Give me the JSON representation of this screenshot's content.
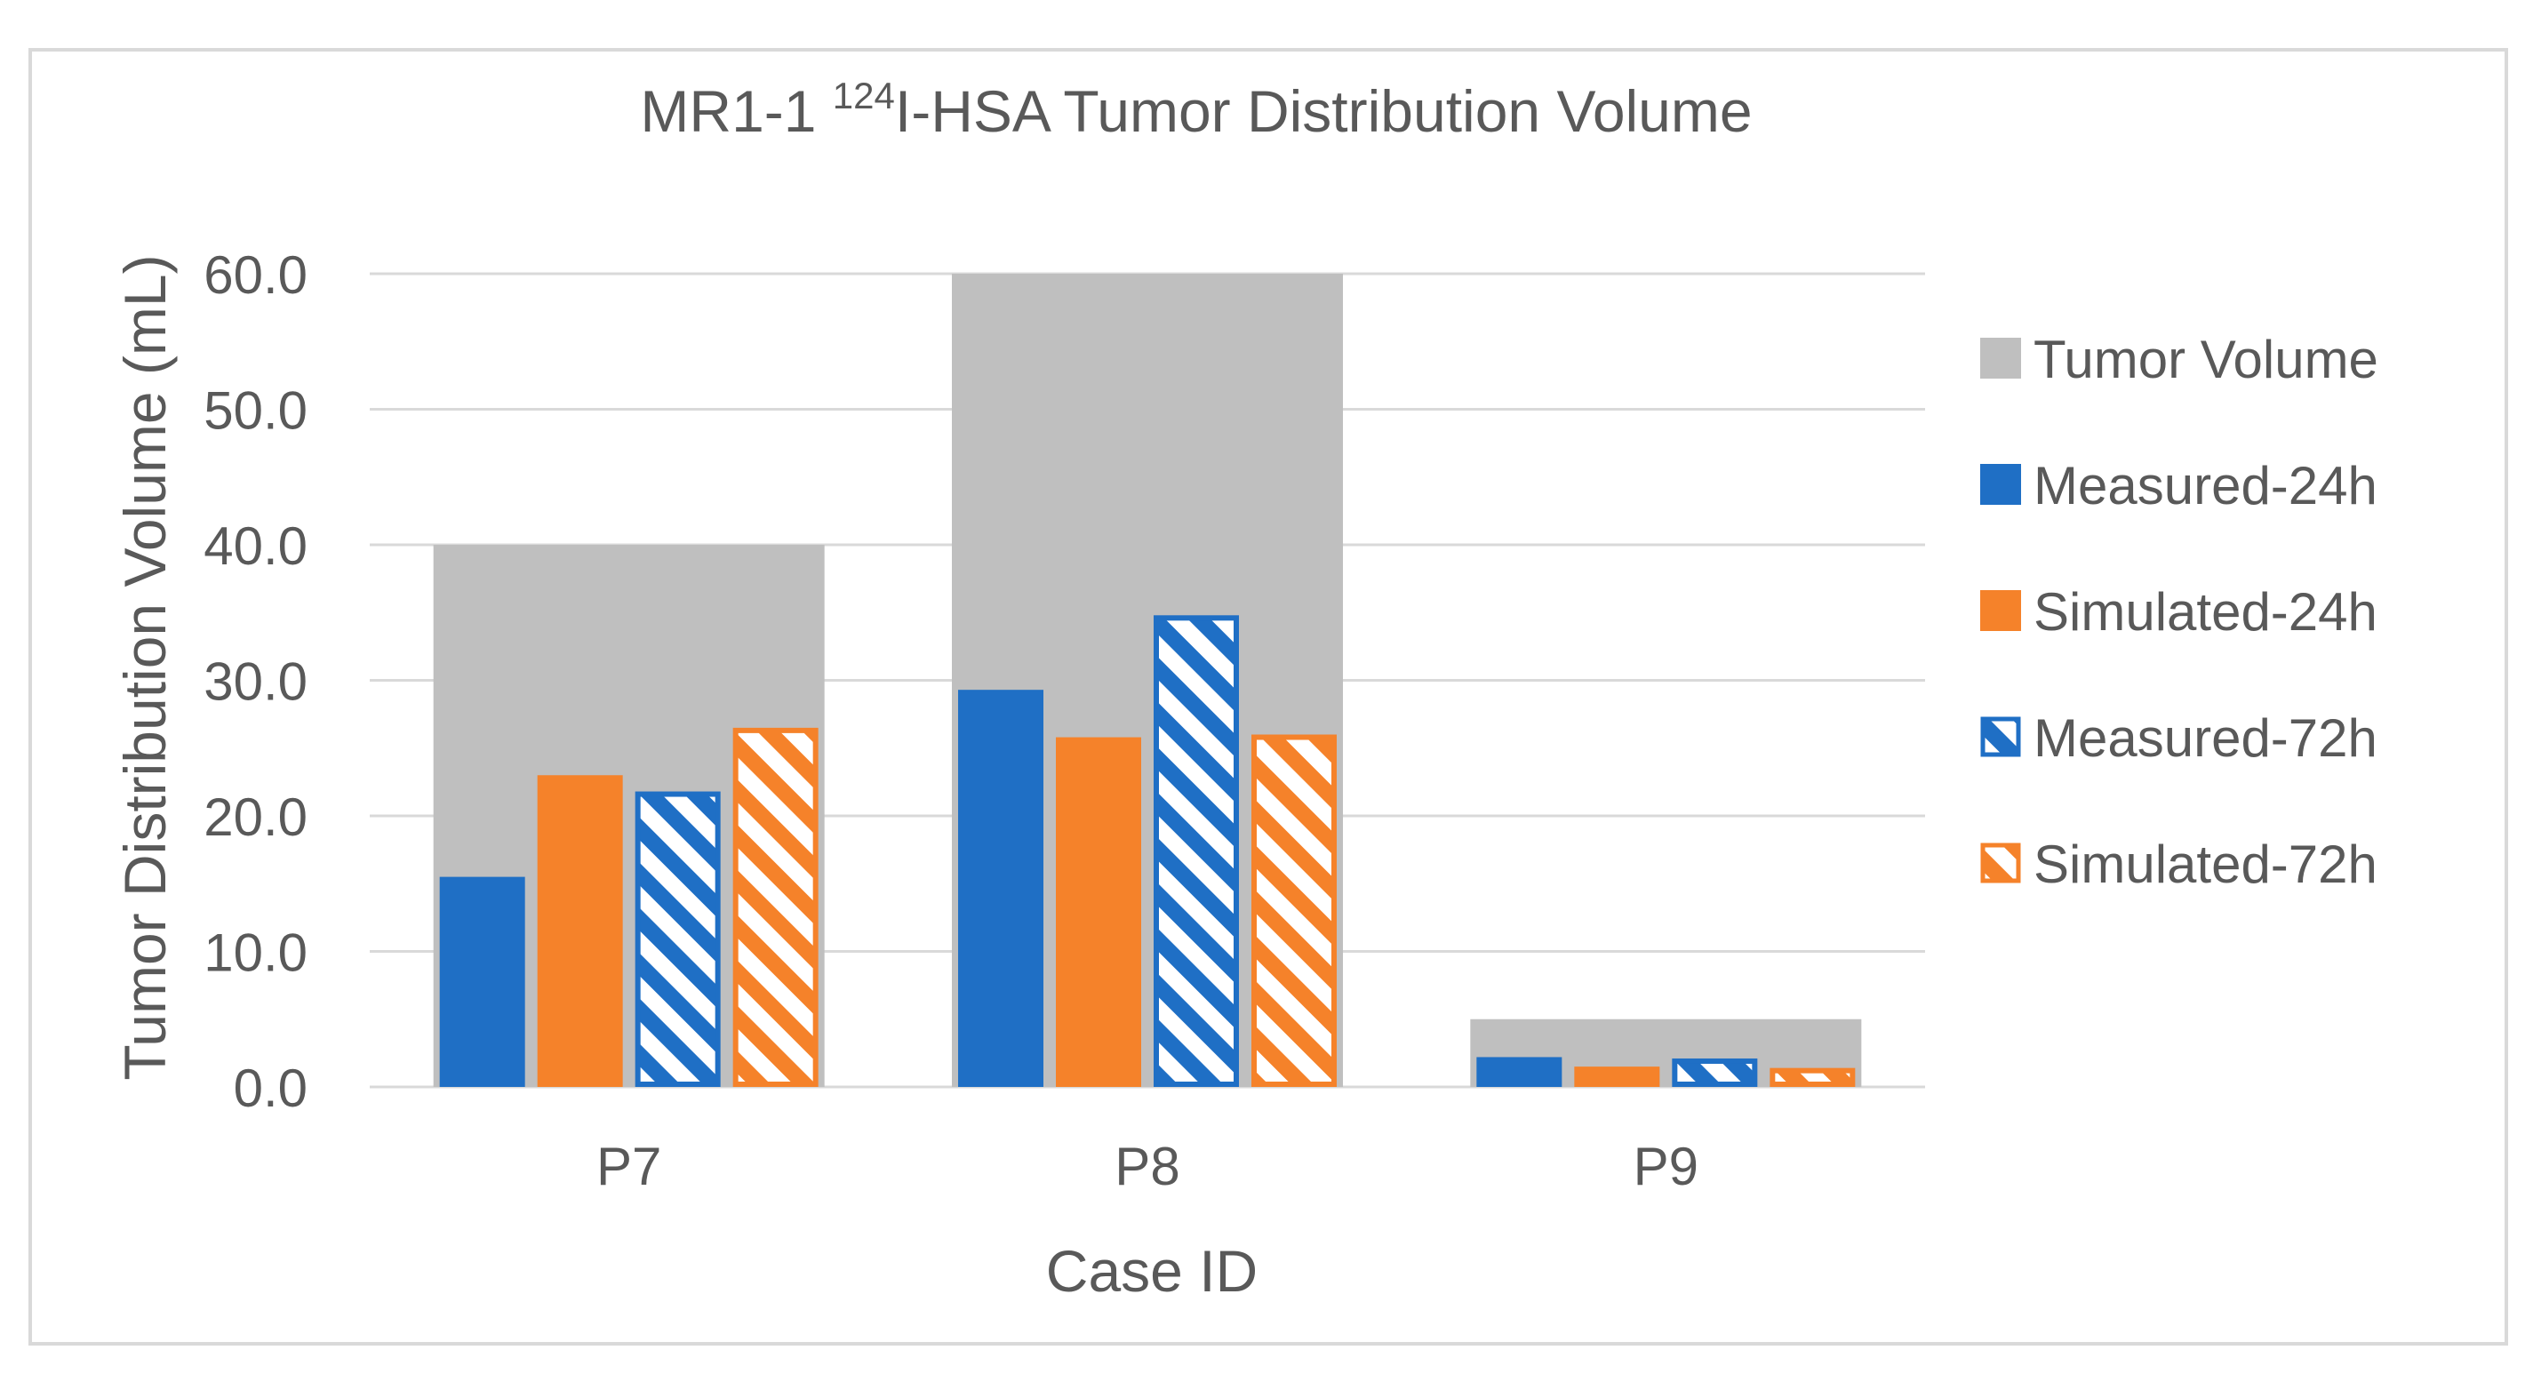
{
  "chart_data": {
    "type": "bar",
    "title_prefix": "MR1-1 ",
    "title_superscript": "124",
    "title_suffix": "I-HSA Tumor Distribution Volume",
    "xlabel": "Case ID",
    "ylabel": "Tumor Distribution Volume (mL)",
    "ylim": [
      0,
      60
    ],
    "yticks": [
      "0.0",
      "10.0",
      "20.0",
      "30.0",
      "40.0",
      "50.0",
      "60.0"
    ],
    "categories": [
      "P7",
      "P8",
      "P9"
    ],
    "background_series": {
      "name": "Tumor Volume",
      "color": "#bfbfbf",
      "values": [
        40.0,
        60.0,
        5.0
      ]
    },
    "series": [
      {
        "name": "Measured-24h",
        "color": "#1f6fc5",
        "style": "solid",
        "values": [
          15.5,
          29.3,
          2.2
        ]
      },
      {
        "name": "Simulated-24h",
        "color": "#f5822a",
        "style": "solid",
        "values": [
          23.0,
          25.8,
          1.5
        ]
      },
      {
        "name": "Measured-72h",
        "color": "#1f6fc5",
        "style": "hatched",
        "values": [
          21.8,
          34.8,
          2.1
        ]
      },
      {
        "name": "Simulated-72h",
        "color": "#f5822a",
        "style": "hatched",
        "values": [
          26.5,
          26.0,
          1.4
        ]
      }
    ],
    "legend_position": "right",
    "grid": true
  }
}
